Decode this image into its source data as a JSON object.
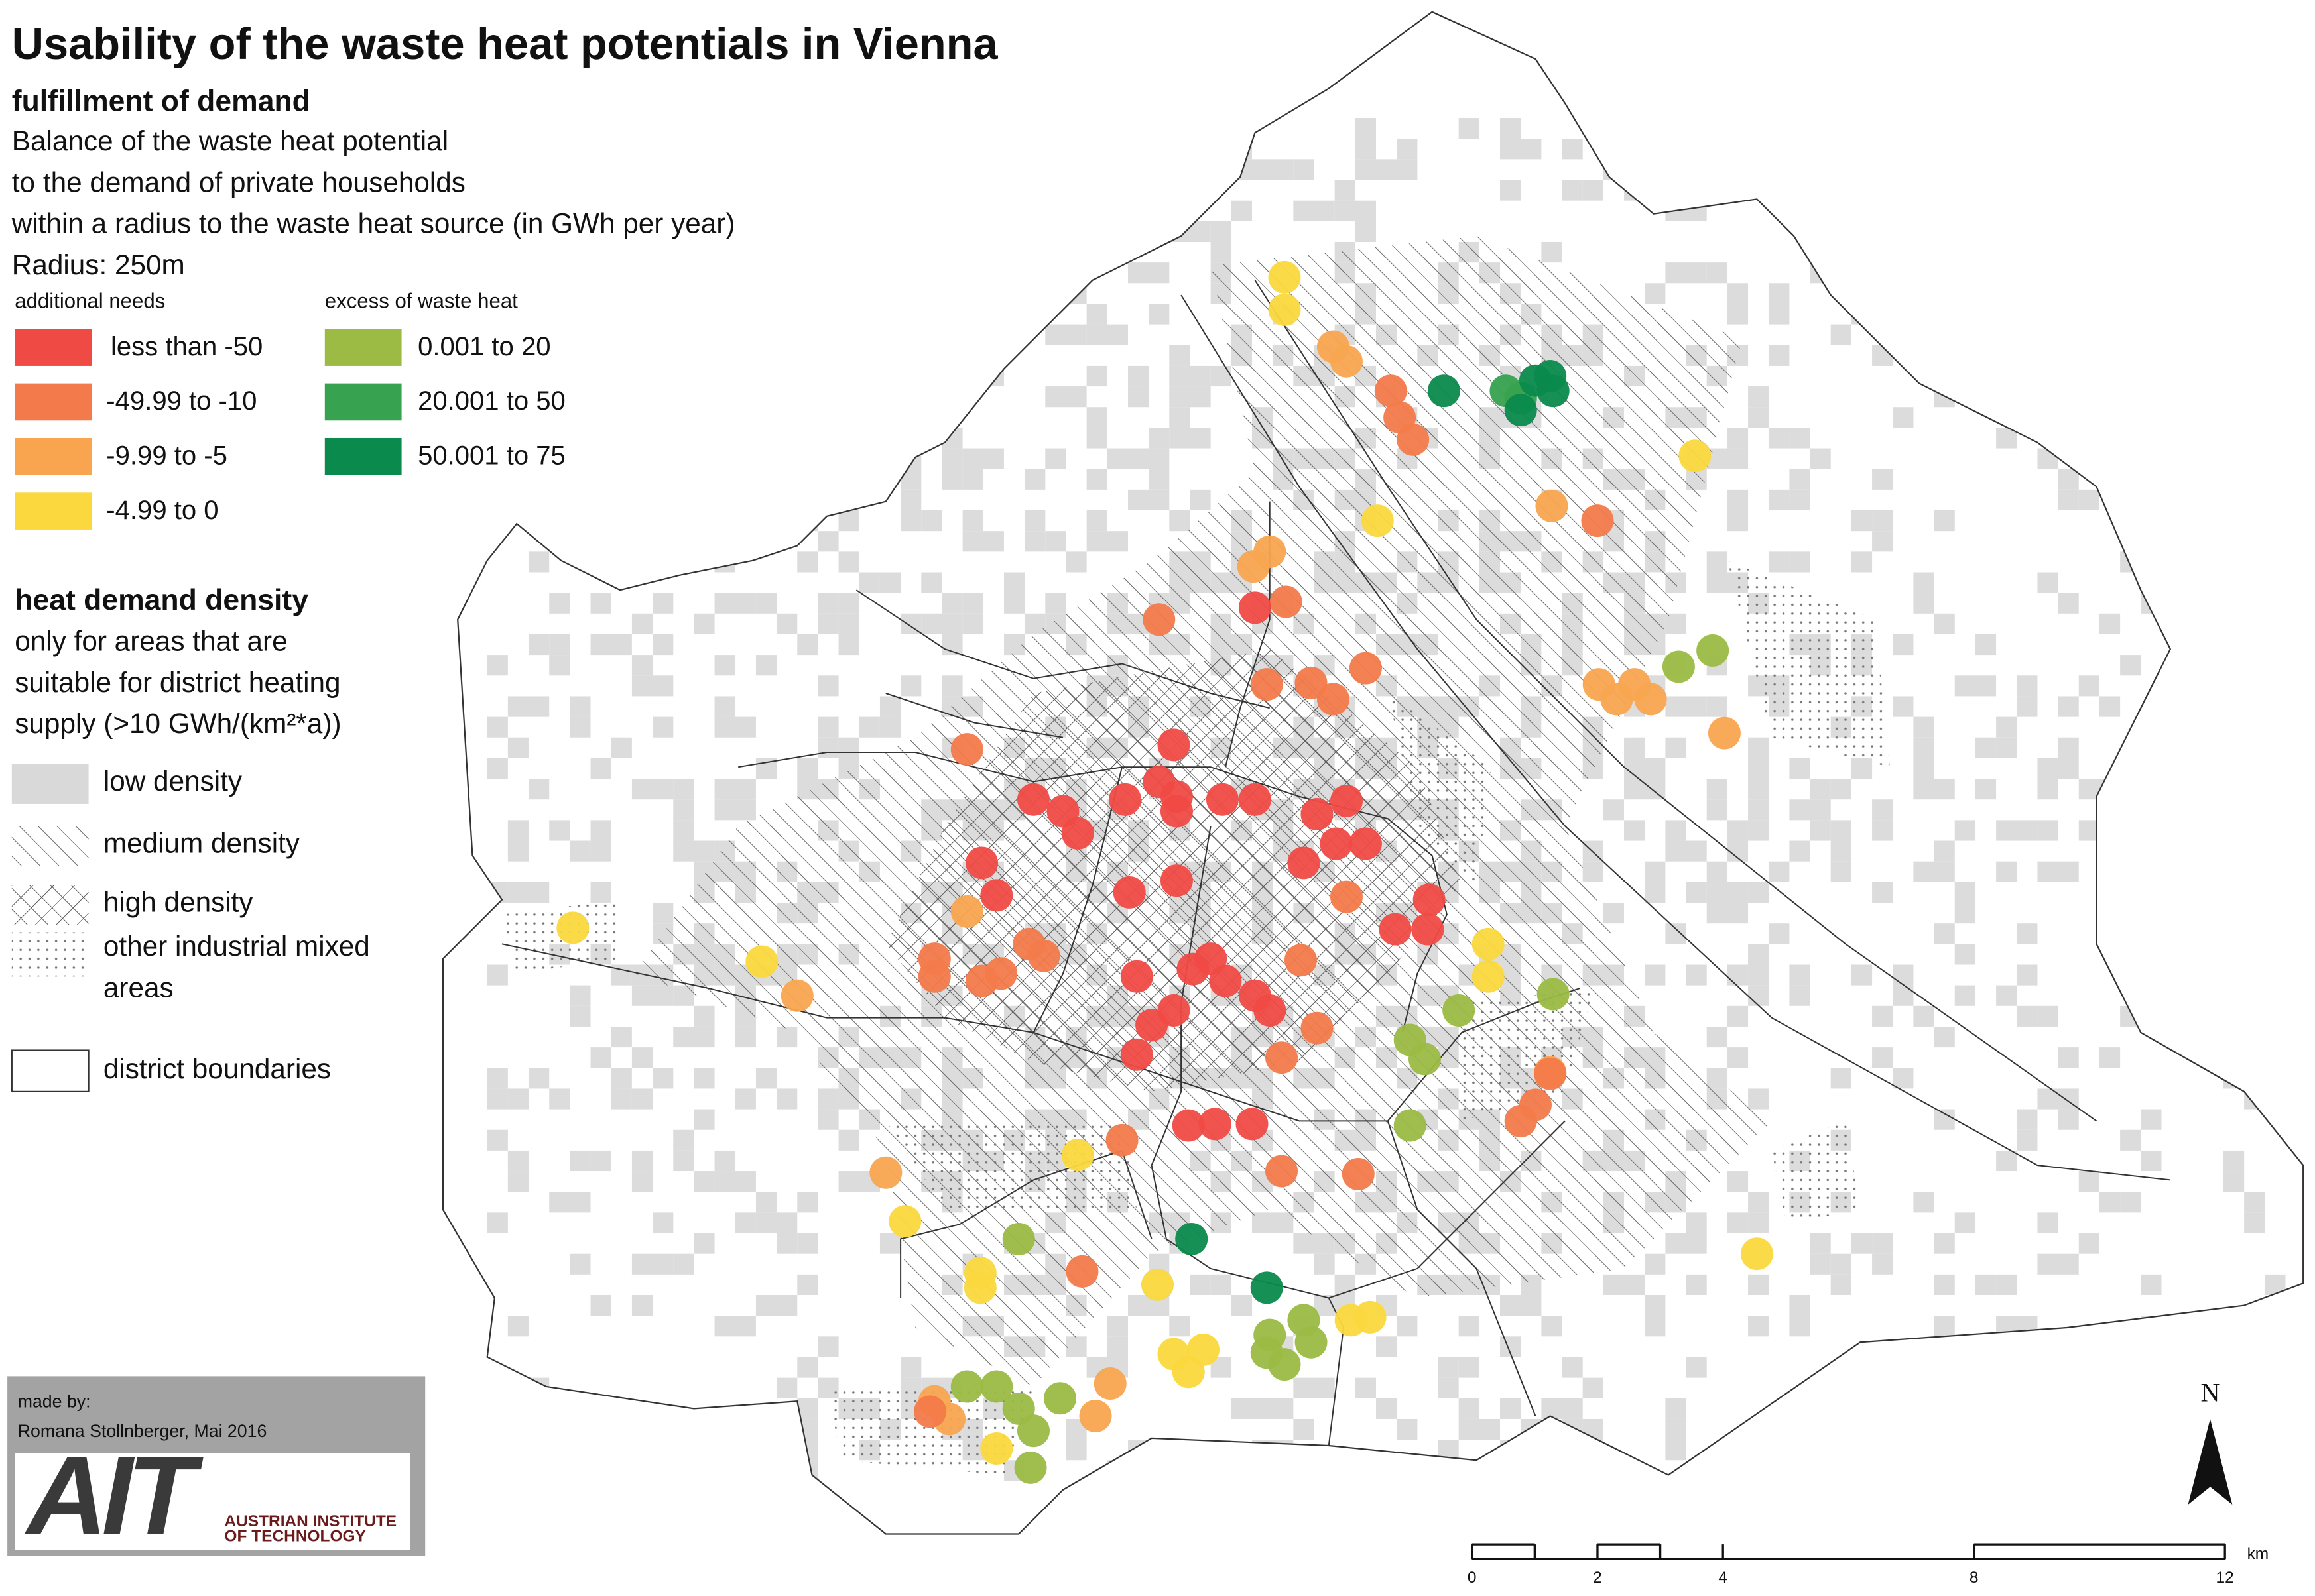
{
  "title": "Usability of the waste heat potentials in Vienna",
  "subtitle": "fulfillment of demand",
  "description": [
    "Balance of the waste heat potential",
    "to the demand of private households",
    "within a radius to the waste heat source (in GWh per year)",
    "Radius: 250m"
  ],
  "legend_demand": {
    "additional_title": "additional needs",
    "excess_title": "excess of waste heat",
    "classes": [
      {
        "label": "less than -50",
        "color": "#f04a44"
      },
      {
        "label": "-49.99 to -10",
        "color": "#f37a4a"
      },
      {
        "label": "-9.99 to -5",
        "color": "#f9a550"
      },
      {
        "label": "-4.99 to 0",
        "color": "#fbd83e"
      },
      {
        "label": "0.001 to 20",
        "color": "#9bbb45"
      },
      {
        "label": "20.001 to 50",
        "color": "#37a24f"
      },
      {
        "label": "50.001 to 75",
        "color": "#0a8a4c"
      }
    ]
  },
  "legend_density": {
    "title": "heat demand density",
    "description": [
      "only for areas that are",
      "suitable for district heating",
      "supply (>10 GWh/(km²*a))"
    ],
    "items": [
      "low density",
      "medium density",
      "high density"
    ],
    "industrial": [
      "other industrial mixed",
      "areas"
    ],
    "boundaries": "district boundaries"
  },
  "credits": {
    "made_by": "made by:",
    "author": "Romana Stollnberger, Mai 2016",
    "logo": "AIT",
    "institute": [
      "AUSTRIAN INSTITUTE",
      "OF TECHNOLOGY"
    ]
  },
  "north": "N",
  "scale_bar": {
    "ticks": [
      0,
      2,
      4,
      8,
      12
    ],
    "unit": "km"
  }
}
